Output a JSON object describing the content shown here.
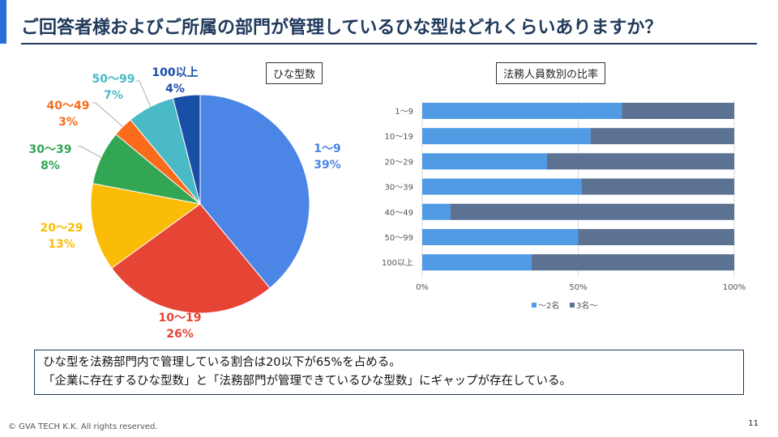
{
  "header": {
    "title": "ご回答者様およびご所属の部門が管理しているひな型はどれくらいありますか？"
  },
  "pie": {
    "title": "ひな型数",
    "colors": [
      "#4b86e6",
      "#e64535",
      "#fbbc07",
      "#33a653",
      "#fa6b1b",
      "#49bac6",
      "#1a4fa8"
    ]
  },
  "bar": {
    "title": "法務人員数別の比率",
    "colors": {
      "le2": "#519be5",
      "ge3": "#5b7293"
    }
  },
  "chart_data": [
    {
      "type": "pie",
      "title": "ひな型数",
      "slices": [
        {
          "label": "1〜9",
          "percent_label": "39%",
          "value": 39
        },
        {
          "label": "10〜19",
          "percent_label": "26%",
          "value": 26
        },
        {
          "label": "20〜29",
          "percent_label": "13%",
          "value": 13
        },
        {
          "label": "30〜39",
          "percent_label": "8%",
          "value": 8
        },
        {
          "label": "40〜49",
          "percent_label": "3%",
          "value": 3
        },
        {
          "label": "50〜99",
          "percent_label": "7%",
          "value": 7
        },
        {
          "label": "100以上",
          "percent_label": "4%",
          "value": 4
        }
      ]
    },
    {
      "type": "bar",
      "orientation": "horizontal",
      "stacked": "percent",
      "title": "法務人員数別の比率",
      "categories": [
        "1〜9",
        "10〜19",
        "20〜29",
        "30〜39",
        "40〜49",
        "50〜99",
        "100以上"
      ],
      "series": [
        {
          "name": "〜2名",
          "values": [
            64,
            54,
            40,
            51,
            9,
            50,
            35
          ]
        },
        {
          "name": "3名〜",
          "values": [
            36,
            46,
            60,
            49,
            91,
            50,
            65
          ]
        }
      ],
      "xlim": [
        0,
        100
      ],
      "xticks": [
        "0%",
        "50%",
        "100%"
      ],
      "legend": "bottom"
    }
  ],
  "note": {
    "line1": "ひな型を法務部門内で管理している割合は20以下が65%を占める。",
    "line2": "「企業に存在するひな型数」と「法務部門が管理できているひな型数」にギャップが存在している。"
  },
  "footer": {
    "copyright": "© GVA TECH  K.K.  All rights reserved.",
    "page": "11"
  }
}
